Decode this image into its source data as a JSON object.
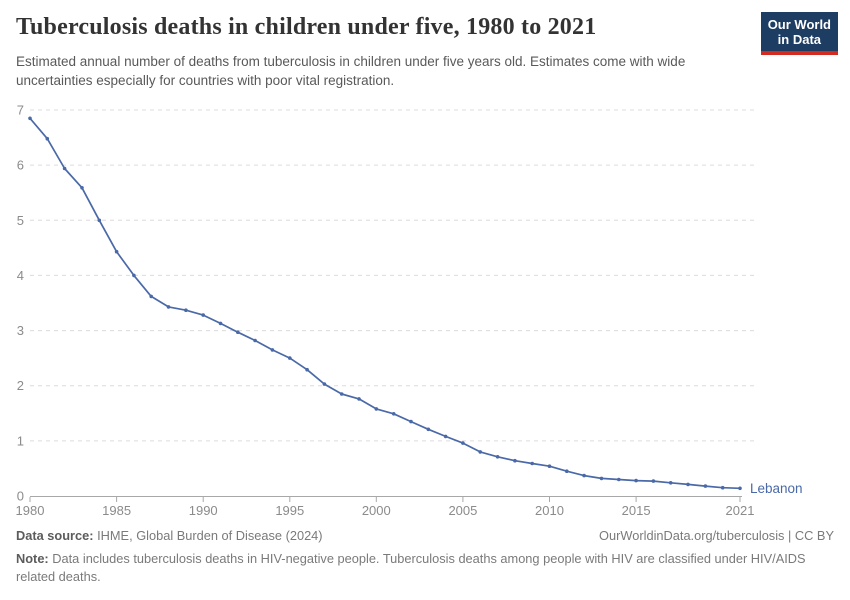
{
  "header": {
    "title": "Tuberculosis deaths in children under five, 1980 to 2021",
    "subtitle": "Estimated annual number of deaths from tuberculosis in children under five years old. Estimates come with wide uncertainties especially for countries with poor vital registration.",
    "logo": {
      "line1": "Our World",
      "line2": "in Data",
      "bg_color": "#1d3d63",
      "accent_color": "#d42b20"
    }
  },
  "chart_data": {
    "type": "line",
    "title": "Tuberculosis deaths in children under five, 1980 to 2021",
    "xlabel": "",
    "ylabel": "",
    "ylim": [
      0,
      7
    ],
    "yticks": [
      0,
      1,
      2,
      3,
      4,
      5,
      6,
      7
    ],
    "xticks": [
      1980,
      1985,
      1990,
      1995,
      2000,
      2005,
      2010,
      2015,
      2021
    ],
    "grid": "horizontal-dashed",
    "legend_position": "end-of-line-label",
    "x": [
      1980,
      1981,
      1982,
      1983,
      1984,
      1985,
      1986,
      1987,
      1988,
      1989,
      1990,
      1991,
      1992,
      1993,
      1994,
      1995,
      1996,
      1997,
      1998,
      1999,
      2000,
      2001,
      2002,
      2003,
      2004,
      2005,
      2006,
      2007,
      2008,
      2009,
      2010,
      2011,
      2012,
      2013,
      2014,
      2015,
      2016,
      2017,
      2018,
      2019,
      2020,
      2021
    ],
    "series": [
      {
        "name": "Lebanon",
        "color": "#4a69a8",
        "values": [
          6.85,
          6.48,
          5.94,
          5.59,
          5.0,
          4.43,
          4.0,
          3.62,
          3.43,
          3.37,
          3.28,
          3.13,
          2.97,
          2.82,
          2.65,
          2.5,
          2.29,
          2.03,
          1.85,
          1.76,
          1.58,
          1.49,
          1.35,
          1.21,
          1.08,
          0.96,
          0.8,
          0.71,
          0.64,
          0.59,
          0.54,
          0.45,
          0.37,
          0.32,
          0.3,
          0.28,
          0.27,
          0.24,
          0.21,
          0.18,
          0.15,
          0.14
        ]
      }
    ],
    "colors": {
      "gridline": "#dcdcdc",
      "axis": "#a8a8a8",
      "tick_label": "#8b8b8b"
    }
  },
  "footer": {
    "source_label": "Data source:",
    "source_text": " IHME, Global Burden of Disease (2024)",
    "link_text": "OurWorldinData.org/tuberculosis | CC BY",
    "note_label": "Note:",
    "note_text": " Data includes tuberculosis deaths in HIV-negative people. Tuberculosis deaths among people with HIV are classified under HIV/AIDS related deaths."
  }
}
